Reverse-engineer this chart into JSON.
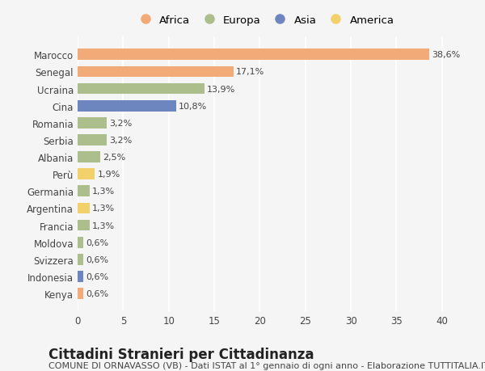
{
  "categories": [
    "Marocco",
    "Senegal",
    "Ucraina",
    "Cina",
    "Romania",
    "Serbia",
    "Albania",
    "Perù",
    "Germania",
    "Argentina",
    "Francia",
    "Moldova",
    "Svizzera",
    "Indonesia",
    "Kenya"
  ],
  "values": [
    38.6,
    17.1,
    13.9,
    10.8,
    3.2,
    3.2,
    2.5,
    1.9,
    1.3,
    1.3,
    1.3,
    0.6,
    0.6,
    0.6,
    0.6
  ],
  "labels": [
    "38,6%",
    "17,1%",
    "13,9%",
    "10,8%",
    "3,2%",
    "3,2%",
    "2,5%",
    "1,9%",
    "1,3%",
    "1,3%",
    "1,3%",
    "0,6%",
    "0,6%",
    "0,6%",
    "0,6%"
  ],
  "colors": [
    "#F2AA78",
    "#F2AA78",
    "#ABBE8C",
    "#6E86C0",
    "#ABBE8C",
    "#ABBE8C",
    "#ABBE8C",
    "#F2D16B",
    "#ABBE8C",
    "#F2D16B",
    "#ABBE8C",
    "#ABBE8C",
    "#ABBE8C",
    "#6E86C0",
    "#F2AA78"
  ],
  "legend_labels": [
    "Africa",
    "Europa",
    "Asia",
    "America"
  ],
  "legend_colors": [
    "#F2AA78",
    "#ABBE8C",
    "#6E86C0",
    "#F2D16B"
  ],
  "title": "Cittadini Stranieri per Cittadinanza",
  "subtitle": "COMUNE DI ORNAVASSO (VB) - Dati ISTAT al 1° gennaio di ogni anno - Elaborazione TUTTITALIA.IT",
  "xlim": [
    0,
    41
  ],
  "xticks": [
    0,
    5,
    10,
    15,
    20,
    25,
    30,
    35,
    40
  ],
  "background_color": "#f5f5f5",
  "grid_color": "#ffffff",
  "title_fontsize": 12,
  "subtitle_fontsize": 8,
  "label_fontsize": 8,
  "tick_fontsize": 8.5,
  "legend_fontsize": 9.5
}
